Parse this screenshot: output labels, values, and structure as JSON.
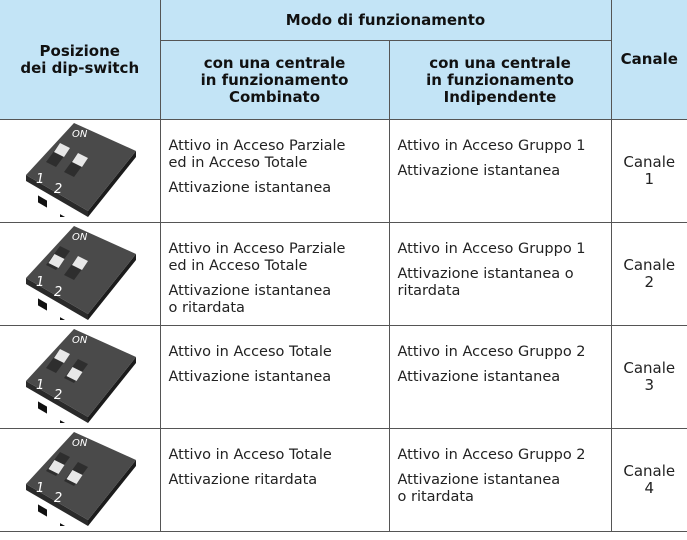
{
  "header": {
    "group_title": "Modo di funzionamento",
    "position": "Posizione\ndei dip-switch",
    "combined": "con una centrale\nin funzionamento\nCombinato",
    "independent": "con una centrale\nin funzionamento\nIndipendente",
    "channel": "Canale"
  },
  "switch_labels": {
    "on": "ON",
    "one": "1",
    "two": "2"
  },
  "rows": [
    {
      "combined": [
        "Attivo in Acceso Parziale\ned in Acceso Totale",
        "Attivazione istantanea"
      ],
      "independent": [
        "Attivo in Acceso Gruppo 1",
        "Attivazione istantanea"
      ],
      "channel": "Canale\n1"
    },
    {
      "combined": [
        "Attivo in Acceso Parziale\ned in Acceso Totale",
        "Attivazione istantanea\no ritardata"
      ],
      "independent": [
        "Attivo in Acceso Gruppo 1",
        "Attivazione istantanea o\nritardata"
      ],
      "channel": "Canale\n2"
    },
    {
      "combined": [
        "Attivo in Acceso Totale",
        "Attivazione istantanea"
      ],
      "independent": [
        "Attivo in Acceso Gruppo 2",
        "Attivazione istantanea"
      ],
      "channel": "Canale\n3"
    },
    {
      "combined": [
        "Attivo in Acceso Totale",
        "Attivazione ritardata"
      ],
      "independent": [
        "Attivo in Acceso Gruppo 2",
        "Attivazione istantanea\no ritardata"
      ],
      "channel": "Canale\n4"
    }
  ]
}
